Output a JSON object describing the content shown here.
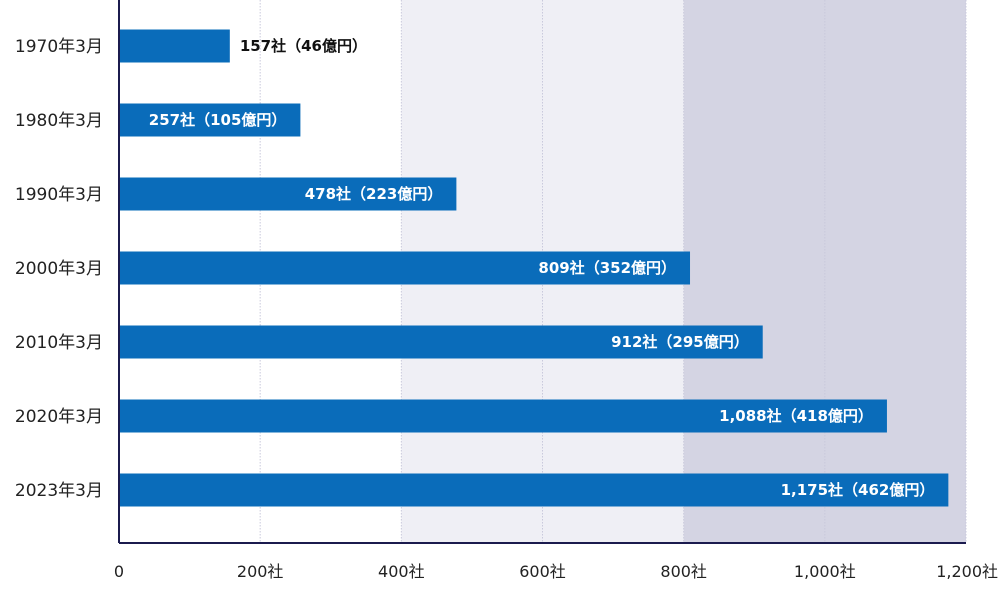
{
  "chart_data": {
    "type": "bar",
    "orientation": "horizontal",
    "categories": [
      "1970年3月",
      "1980年3月",
      "1990年3月",
      "2000年3月",
      "2010年3月",
      "2020年3月",
      "2023年3月"
    ],
    "series": [
      {
        "values": [
          157,
          257,
          478,
          809,
          912,
          1088,
          1175
        ],
        "labels": [
          "157社（46億円）",
          "257社（105億円）",
          "478社（223億円）",
          "809社（352億円）",
          "912社（295億円）",
          "1,088社（418億円）",
          "1,175社（462億円）"
        ]
      }
    ],
    "xlim": [
      0,
      1200
    ],
    "x_ticks": [
      0,
      200,
      400,
      600,
      800,
      1000,
      1200
    ],
    "x_tick_labels": [
      "0",
      "200社",
      "400社",
      "600社",
      "800社",
      "1,000社",
      "1,200社"
    ],
    "background_bands": [
      {
        "from": 400,
        "to": 800,
        "color": "#efeff5"
      },
      {
        "from": 800,
        "to": 1200,
        "color": "#d4d4e3"
      }
    ],
    "grid": true,
    "legend": "none"
  },
  "colors": {
    "bar": "#0a6cba",
    "axis": "#1b1b4e",
    "grid": "#c9c9dc",
    "label_inside": "#ffffff",
    "label_outside": "#111111"
  }
}
